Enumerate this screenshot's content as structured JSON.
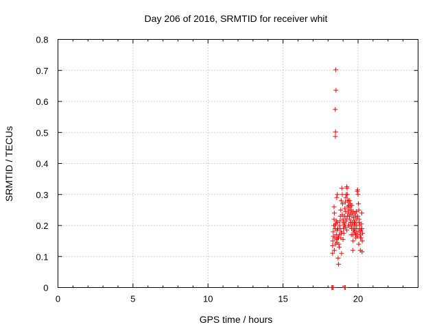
{
  "chart_data": {
    "type": "scatter",
    "title": "Day 206 of 2016, SRMTID for receiver whit",
    "xlabel": "GPS time / hours",
    "ylabel": "SRMTID / TECUs",
    "xlim": [
      0,
      24
    ],
    "ylim": [
      0,
      0.8
    ],
    "xticks": [
      0,
      5,
      10,
      15,
      20
    ],
    "yticks": [
      0,
      0.1,
      0.2,
      0.3,
      0.4,
      0.5,
      0.6,
      0.7,
      0.8
    ],
    "xtick_labels": [
      "0",
      "5",
      "10",
      "15",
      "20"
    ],
    "ytick_labels": [
      "0",
      "0.1",
      "0.2",
      "0.3",
      "0.4",
      "0.5",
      "0.6",
      "0.7",
      "0.8"
    ],
    "grid": true,
    "marker": "+",
    "color": "#ff0000",
    "series": [
      {
        "name": "SRMTID",
        "points": [
          [
            18.25,
            0.0
          ],
          [
            18.3,
            0.0
          ],
          [
            18.35,
            0.0
          ],
          [
            19.1,
            0.0
          ],
          [
            19.15,
            0.0
          ],
          [
            18.52,
            0.702
          ],
          [
            18.53,
            0.636
          ],
          [
            18.48,
            0.574
          ],
          [
            18.5,
            0.502
          ],
          [
            18.49,
            0.487
          ],
          [
            18.3,
            0.135
          ],
          [
            18.32,
            0.15
          ],
          [
            18.35,
            0.18
          ],
          [
            18.38,
            0.2
          ],
          [
            18.4,
            0.22
          ],
          [
            18.42,
            0.12
          ],
          [
            18.45,
            0.16
          ],
          [
            18.47,
            0.19
          ],
          [
            18.5,
            0.14
          ],
          [
            18.52,
            0.205
          ],
          [
            18.55,
            0.17
          ],
          [
            18.57,
            0.155
          ],
          [
            18.6,
            0.185
          ],
          [
            18.62,
            0.21
          ],
          [
            18.65,
            0.16
          ],
          [
            18.67,
            0.095
          ],
          [
            18.7,
            0.075
          ],
          [
            18.72,
            0.14
          ],
          [
            18.75,
            0.17
          ],
          [
            18.78,
            0.2
          ],
          [
            18.8,
            0.215
          ],
          [
            18.82,
            0.23
          ],
          [
            18.85,
            0.25
          ],
          [
            18.87,
            0.18
          ],
          [
            18.9,
            0.11
          ],
          [
            18.92,
            0.32
          ],
          [
            18.95,
            0.3
          ],
          [
            18.97,
            0.27
          ],
          [
            19.0,
            0.22
          ],
          [
            19.02,
            0.19
          ],
          [
            19.05,
            0.175
          ],
          [
            19.07,
            0.205
          ],
          [
            19.1,
            0.23
          ],
          [
            19.12,
            0.255
          ],
          [
            19.15,
            0.275
          ],
          [
            19.17,
            0.245
          ],
          [
            19.2,
            0.215
          ],
          [
            19.22,
            0.3
          ],
          [
            19.25,
            0.325
          ],
          [
            19.27,
            0.32
          ],
          [
            19.3,
            0.28
          ],
          [
            19.32,
            0.26
          ],
          [
            19.35,
            0.24
          ],
          [
            19.37,
            0.265
          ],
          [
            19.4,
            0.25
          ],
          [
            19.42,
            0.23
          ],
          [
            19.45,
            0.22
          ],
          [
            19.47,
            0.26
          ],
          [
            19.5,
            0.24
          ],
          [
            19.52,
            0.21
          ],
          [
            19.55,
            0.17
          ],
          [
            19.57,
            0.19
          ],
          [
            19.6,
            0.2
          ],
          [
            19.62,
            0.21
          ],
          [
            19.65,
            0.12
          ],
          [
            19.67,
            0.15
          ],
          [
            19.7,
            0.185
          ],
          [
            19.72,
            0.2
          ],
          [
            19.75,
            0.21
          ],
          [
            19.77,
            0.215
          ],
          [
            19.8,
            0.19
          ],
          [
            19.82,
            0.17
          ],
          [
            19.85,
            0.16
          ],
          [
            19.87,
            0.175
          ],
          [
            19.9,
            0.2
          ],
          [
            19.92,
            0.22
          ],
          [
            19.95,
            0.31
          ],
          [
            19.97,
            0.315
          ],
          [
            20.0,
            0.3
          ],
          [
            20.02,
            0.27
          ],
          [
            20.05,
            0.25
          ],
          [
            20.07,
            0.21
          ],
          [
            20.1,
            0.19
          ],
          [
            20.12,
            0.18
          ],
          [
            20.15,
            0.17
          ],
          [
            20.17,
            0.16
          ],
          [
            20.2,
            0.185
          ],
          [
            20.22,
            0.205
          ],
          [
            20.25,
            0.24
          ],
          [
            20.27,
            0.115
          ],
          [
            20.15,
            0.12
          ],
          [
            20.05,
            0.14
          ],
          [
            19.95,
            0.165
          ],
          [
            19.85,
            0.23
          ],
          [
            19.75,
            0.18
          ],
          [
            19.65,
            0.17
          ],
          [
            19.55,
            0.25
          ],
          [
            19.45,
            0.28
          ],
          [
            19.35,
            0.2
          ],
          [
            19.25,
            0.185
          ],
          [
            19.15,
            0.195
          ],
          [
            19.05,
            0.21
          ],
          [
            18.95,
            0.235
          ],
          [
            18.85,
            0.16
          ],
          [
            18.75,
            0.13
          ],
          [
            18.65,
            0.19
          ],
          [
            18.55,
            0.215
          ],
          [
            18.45,
            0.2
          ],
          [
            18.35,
            0.165
          ],
          [
            18.3,
            0.11
          ],
          [
            18.6,
            0.145
          ],
          [
            18.7,
            0.16
          ],
          [
            18.8,
            0.19
          ],
          [
            18.9,
            0.175
          ],
          [
            19.0,
            0.155
          ],
          [
            19.1,
            0.2
          ],
          [
            19.2,
            0.22
          ],
          [
            19.3,
            0.23
          ],
          [
            19.4,
            0.2
          ],
          [
            19.5,
            0.2
          ],
          [
            19.6,
            0.235
          ],
          [
            19.7,
            0.225
          ],
          [
            19.8,
            0.205
          ],
          [
            19.9,
            0.19
          ],
          [
            20.0,
            0.18
          ],
          [
            20.1,
            0.2
          ],
          [
            20.2,
            0.16
          ],
          [
            20.25,
            0.19
          ],
          [
            20.3,
            0.175
          ],
          [
            20.28,
            0.15
          ],
          [
            18.4,
            0.26
          ],
          [
            18.42,
            0.24
          ],
          [
            18.58,
            0.29
          ],
          [
            18.62,
            0.3
          ],
          [
            18.88,
            0.28
          ],
          [
            19.18,
            0.29
          ],
          [
            19.28,
            0.3
          ],
          [
            19.38,
            0.28
          ],
          [
            19.48,
            0.27
          ],
          [
            19.58,
            0.265
          ],
          [
            19.68,
            0.245
          ],
          [
            19.78,
            0.24
          ],
          [
            19.88,
            0.245
          ],
          [
            19.98,
            0.23
          ],
          [
            20.08,
            0.22
          ]
        ]
      }
    ]
  }
}
